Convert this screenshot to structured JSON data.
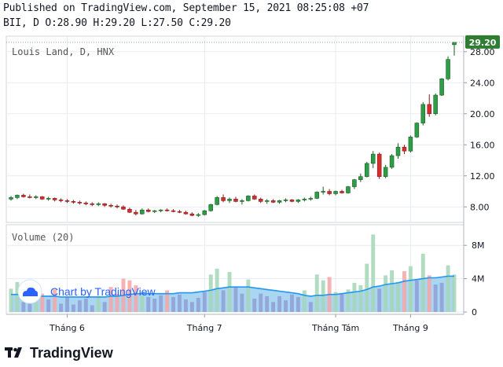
{
  "header": {
    "line1": "Published on TradingView.com, September 15, 2021 08:25:08 +07",
    "line2": "BII, D O:28.90 H:29.20 L:27.50 C:29.20"
  },
  "footer": {
    "brand": "TradingView"
  },
  "colors": {
    "up": "#26a69a",
    "upBody": "#2e9d4a",
    "down": "#d32f2f",
    "grid": "#e8ebf0",
    "area": "#8fc8ee",
    "volUp": "#a5d6b7",
    "volDown": "#f4a6a6",
    "volBlue": "#8e9fd6",
    "badge": "#2e7d32"
  },
  "chart_data": [
    {
      "type": "candlestick",
      "title": "Louis Land, D, HNX",
      "last_price_label": "29.20",
      "ylim": [
        6,
        30
      ],
      "y_ticks": [
        "8.00",
        "12.00",
        "16.00",
        "20.00",
        "24.00",
        "28.00"
      ],
      "x_ticks": [
        "Tháng 6",
        "Tháng 7",
        "Tháng Tám",
        "Tháng 9"
      ],
      "approx_candles": [
        [
          9.0,
          9.4,
          8.8,
          9.2
        ],
        [
          9.2,
          9.6,
          9.0,
          9.5
        ],
        [
          9.5,
          9.7,
          9.2,
          9.3
        ],
        [
          9.3,
          9.6,
          9.1,
          9.2
        ],
        [
          9.2,
          9.5,
          9.0,
          9.3
        ],
        [
          9.3,
          9.4,
          8.9,
          9.0
        ],
        [
          9.0,
          9.3,
          8.8,
          9.1
        ],
        [
          9.1,
          9.2,
          8.7,
          8.9
        ],
        [
          8.9,
          9.1,
          8.6,
          8.8
        ],
        [
          8.8,
          9.0,
          8.5,
          8.7
        ],
        [
          8.7,
          8.9,
          8.4,
          8.6
        ],
        [
          8.6,
          8.8,
          8.3,
          8.5
        ],
        [
          8.5,
          8.7,
          8.2,
          8.4
        ],
        [
          8.4,
          8.6,
          8.1,
          8.3
        ],
        [
          8.3,
          8.6,
          8.1,
          8.4
        ],
        [
          8.4,
          8.5,
          8.0,
          8.2
        ],
        [
          8.2,
          8.4,
          7.9,
          8.1
        ],
        [
          8.1,
          8.3,
          7.8,
          8.0
        ],
        [
          8.0,
          8.2,
          7.6,
          7.7
        ],
        [
          7.7,
          7.9,
          7.2,
          7.3
        ],
        [
          7.3,
          7.6,
          6.9,
          7.1
        ],
        [
          7.1,
          7.8,
          7.0,
          7.6
        ],
        [
          7.6,
          7.8,
          7.3,
          7.4
        ],
        [
          7.4,
          7.6,
          7.2,
          7.5
        ],
        [
          7.5,
          7.7,
          7.3,
          7.6
        ],
        [
          7.6,
          7.8,
          7.4,
          7.5
        ],
        [
          7.5,
          7.7,
          7.3,
          7.4
        ],
        [
          7.4,
          7.6,
          7.2,
          7.3
        ],
        [
          7.3,
          7.5,
          7.0,
          7.1
        ],
        [
          7.1,
          7.3,
          6.8,
          6.9
        ],
        [
          6.9,
          7.2,
          6.7,
          7.0
        ],
        [
          7.0,
          7.6,
          6.9,
          7.5
        ],
        [
          7.5,
          8.4,
          7.4,
          8.3
        ],
        [
          8.3,
          9.4,
          8.2,
          9.2
        ],
        [
          9.2,
          9.6,
          8.6,
          8.8
        ],
        [
          8.8,
          9.2,
          8.5,
          9.0
        ],
        [
          9.0,
          9.3,
          8.6,
          8.7
        ],
        [
          8.7,
          9.0,
          8.3,
          8.8
        ],
        [
          8.8,
          9.5,
          8.7,
          9.4
        ],
        [
          9.4,
          9.6,
          8.9,
          9.0
        ],
        [
          9.0,
          9.2,
          8.5,
          8.7
        ],
        [
          8.7,
          9.0,
          8.4,
          8.8
        ],
        [
          8.8,
          9.0,
          8.5,
          8.6
        ],
        [
          8.6,
          8.9,
          8.4,
          8.8
        ],
        [
          8.8,
          9.1,
          8.6,
          8.9
        ],
        [
          8.9,
          9.0,
          8.6,
          8.7
        ],
        [
          8.7,
          9.0,
          8.5,
          8.9
        ],
        [
          8.9,
          9.2,
          8.7,
          9.0
        ],
        [
          9.0,
          9.3,
          8.8,
          9.1
        ],
        [
          9.1,
          10.0,
          9.0,
          9.9
        ],
        [
          9.9,
          10.6,
          9.6,
          10.0
        ],
        [
          10.0,
          10.3,
          9.5,
          9.7
        ],
        [
          9.7,
          10.1,
          9.5,
          10.0
        ],
        [
          10.0,
          10.2,
          9.7,
          9.8
        ],
        [
          9.8,
          10.7,
          9.7,
          10.6
        ],
        [
          10.6,
          11.6,
          10.3,
          11.5
        ],
        [
          11.5,
          12.3,
          11.2,
          11.9
        ],
        [
          11.9,
          13.8,
          11.8,
          13.6
        ],
        [
          13.6,
          15.2,
          13.0,
          14.8
        ],
        [
          14.8,
          15.0,
          11.6,
          11.9
        ],
        [
          11.9,
          13.4,
          11.7,
          13.1
        ],
        [
          13.1,
          14.8,
          12.9,
          14.6
        ],
        [
          14.6,
          16.2,
          14.2,
          15.7
        ],
        [
          15.7,
          16.0,
          14.8,
          15.2
        ],
        [
          15.2,
          17.2,
          15.0,
          17.0
        ],
        [
          17.0,
          18.9,
          16.9,
          18.8
        ],
        [
          18.8,
          21.5,
          18.5,
          21.2
        ],
        [
          21.2,
          22.5,
          19.6,
          20.0
        ],
        [
          20.0,
          22.6,
          19.8,
          22.4
        ],
        [
          22.4,
          24.6,
          22.3,
          24.5
        ],
        [
          24.5,
          27.4,
          24.3,
          27.0
        ],
        [
          28.9,
          29.2,
          27.5,
          29.2
        ]
      ]
    },
    {
      "type": "bar",
      "title": "Volume (20)",
      "ylim": [
        0,
        10
      ],
      "y_ticks": [
        "0",
        "4M",
        "8M"
      ],
      "note": "volume bars (values in millions), with 20-day moving average area",
      "approx_volume": [
        2.8,
        3.6,
        1.2,
        2.0,
        3.5,
        2.2,
        1.5,
        2.7,
        1.0,
        1.8,
        0.9,
        1.4,
        1.6,
        0.8,
        1.9,
        1.2,
        3.0,
        2.2,
        4.0,
        3.8,
        3.2,
        2.4,
        1.8,
        1.6,
        2.0,
        2.6,
        1.8,
        2.1,
        1.5,
        1.2,
        1.7,
        2.4,
        4.5,
        5.2,
        2.6,
        4.8,
        3.0,
        2.2,
        3.9,
        1.6,
        2.2,
        1.9,
        1.2,
        1.9,
        1.4,
        2.1,
        1.8,
        2.6,
        1.2,
        4.5,
        3.8,
        4.2,
        2.4,
        2.2,
        2.7,
        3.5,
        3.2,
        5.8,
        9.3,
        2.8,
        4.4,
        5.0,
        3.6,
        4.9,
        5.5,
        3.8,
        7.0,
        4.4,
        3.3,
        3.5,
        5.6,
        4.5
      ],
      "approx_ma20": [
        2.1,
        2.1,
        2.0,
        2.0,
        2.0,
        1.9,
        1.9,
        1.9,
        1.8,
        1.8,
        1.8,
        1.8,
        1.8,
        1.8,
        1.8,
        1.8,
        1.9,
        1.9,
        2.0,
        2.1,
        2.2,
        2.2,
        2.2,
        2.2,
        2.2,
        2.2,
        2.2,
        2.3,
        2.3,
        2.3,
        2.4,
        2.5,
        2.6,
        2.8,
        2.9,
        3.0,
        3.0,
        3.0,
        3.0,
        2.9,
        2.8,
        2.7,
        2.6,
        2.5,
        2.4,
        2.3,
        2.2,
        2.0,
        1.9,
        2.0,
        2.0,
        2.1,
        2.1,
        2.2,
        2.3,
        2.4,
        2.5,
        2.7,
        3.0,
        3.1,
        3.3,
        3.4,
        3.5,
        3.7,
        3.8,
        3.9,
        4.0,
        4.1,
        4.1,
        4.2,
        4.3,
        4.3
      ]
    }
  ]
}
